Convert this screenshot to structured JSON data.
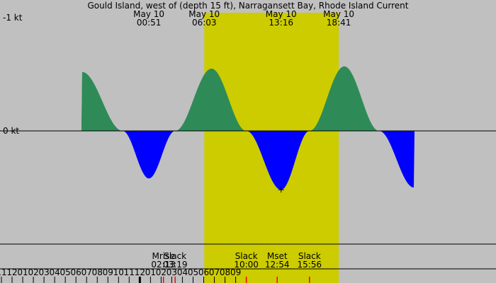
{
  "chart_data": {
    "type": "area",
    "title": "Gould Island, west of (depth 15 ft), Narragansett Bay, Rhode Island Current",
    "xlabel": "",
    "ylabel": "",
    "x_range": [
      "May 10 10:52",
      "May 11 09:27"
    ],
    "y_range": [
      -1.05,
      1.0
    ],
    "colors": {
      "background": "#c0c0c0",
      "daylight": "#cccc00",
      "flood": "#0000ff",
      "ebb": "#2e8b57",
      "tick_major": "#000000",
      "tick_event": "#ff0000"
    },
    "daylight": {
      "start": "06:03",
      "end": "18:41"
    },
    "current_extrema": [
      {
        "time": "00:51",
        "value": 0.42
      },
      {
        "time": "03:19",
        "value": 0.0
      },
      {
        "time": "06:44",
        "value": -0.55
      },
      {
        "time": "10:00",
        "value": 0.0
      },
      {
        "time": "13:16",
        "value": 0.52
      },
      {
        "time": "15:56",
        "value": 0.0
      },
      {
        "time": "19:12",
        "value": -0.57
      }
    ],
    "y_axis_labels": [
      {
        "value": 0,
        "label": "0 kt"
      },
      {
        "value": -1,
        "label": "-1 kt"
      }
    ],
    "top_labels": [
      {
        "time": "00:51",
        "date": "May 10",
        "clock": "00:51"
      },
      {
        "time": "06:03",
        "date": "May 10",
        "clock": "06:03"
      },
      {
        "time": "13:16",
        "date": "May 10",
        "clock": "13:16"
      },
      {
        "time": "18:41",
        "date": "May 10",
        "clock": "18:41"
      }
    ],
    "events": [
      {
        "time": "02:13",
        "name": "Mrise",
        "clock": "02:13"
      },
      {
        "time": "03:19",
        "name": "Slack",
        "clock": "03:19"
      },
      {
        "time": "10:00",
        "name": "Slack",
        "clock": "10:00"
      },
      {
        "time": "12:54",
        "name": "Mset",
        "clock": "12:54"
      },
      {
        "time": "15:56",
        "name": "Slack",
        "clock": "15:56"
      }
    ],
    "hour_ticks": [
      "11",
      "12",
      "01",
      "02",
      "03",
      "04",
      "05",
      "06",
      "07",
      "08",
      "09",
      "10",
      "11",
      "12",
      "01",
      "02",
      "03",
      "04",
      "05",
      "06",
      "07",
      "08",
      "09"
    ]
  }
}
